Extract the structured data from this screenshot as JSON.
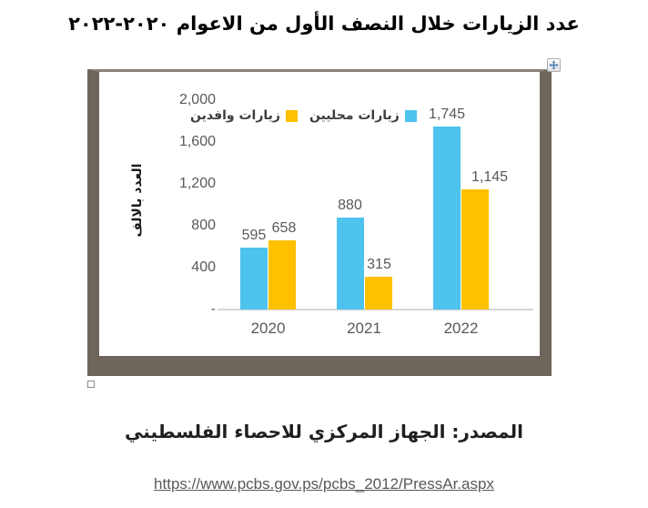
{
  "title": "عدد الزيارات خلال النصف الأول من الاعوام ٢٠٢٠-٢٠٢٢",
  "source_line": "المصدر: الجهاز المركزي للاحصاء الفلسطيني",
  "link": "https://www.pcbs.gov.ps/pcbs_2012/PressAr.aspx",
  "icons": {
    "move_handle": "move-icon",
    "resize_handle": "resize-handle-icon"
  },
  "colors": {
    "frame": "#6e655c",
    "axis_line": "#d6d6d6",
    "chart_text": "#595959",
    "move_arrow": "#4a7fb5"
  },
  "chart_data": {
    "type": "bar",
    "title": "عدد الزيارات خلال النصف الأول من الاعوام ٢٠٢٠-٢٠٢٢",
    "categories": [
      "2020",
      "2021",
      "2022"
    ],
    "series": [
      {
        "name": "زيارات محليين",
        "color": "#4dc3ee",
        "values": [
          595,
          880,
          1745
        ],
        "labels": [
          "595",
          "880",
          "1,745"
        ]
      },
      {
        "name": "زيارات وافدين",
        "color": "#ffc000",
        "values": [
          658,
          315,
          1145
        ],
        "labels": [
          "658",
          "315",
          "1,145"
        ]
      }
    ],
    "ylabel": "العدد بالالف",
    "xlabel": "",
    "ylim": [
      0,
      2000
    ],
    "yticks": [
      {
        "value": 2000,
        "label": "2,000"
      },
      {
        "value": 1600,
        "label": "1,600"
      },
      {
        "value": 1200,
        "label": "1,200"
      },
      {
        "value": 800,
        "label": "800"
      },
      {
        "value": 400,
        "label": "400"
      },
      {
        "value": 0,
        "label": "-"
      }
    ],
    "legend_order_visual_ltr": [
      "زيارات وافدين",
      "زيارات محليين"
    ],
    "legend_position": "top-inside",
    "gridlines": false
  }
}
